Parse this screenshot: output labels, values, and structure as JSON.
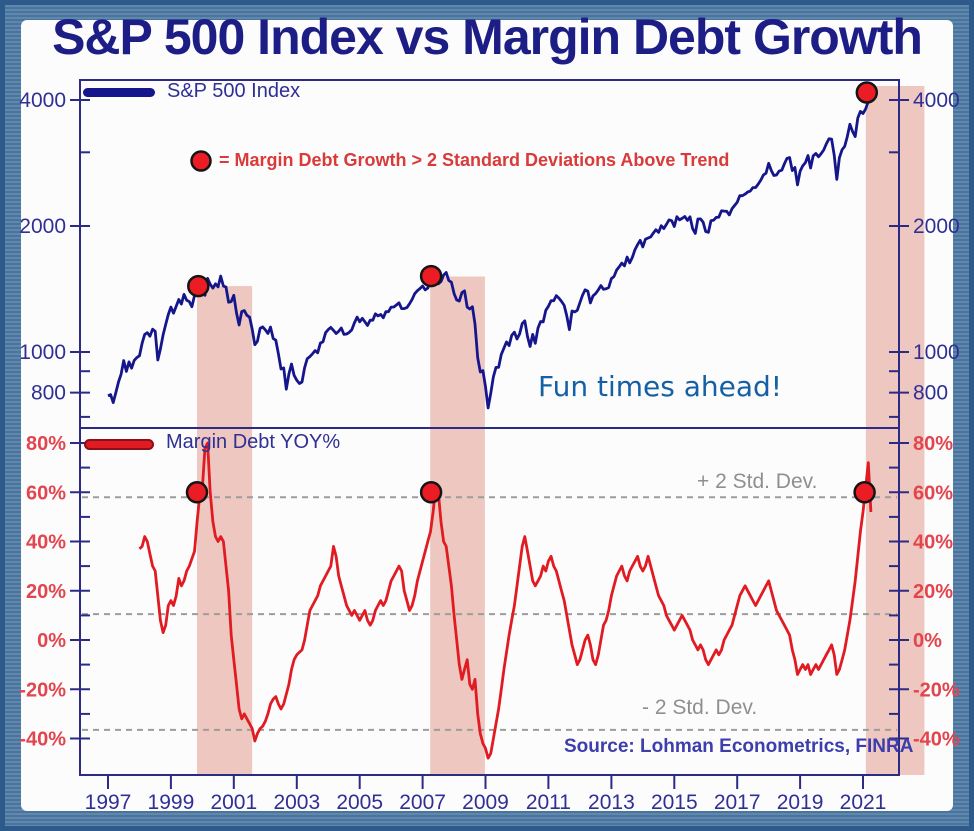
{
  "title": "S&P 500 Index vs Margin Debt Growth",
  "legend": {
    "sp500_label": "S&P 500 Index",
    "margin_dot_label": "= Margin Debt Growth > 2 Standard Deviations Above Trend",
    "margin_yoy_label": "Margin Debt YOY%"
  },
  "annotations": {
    "fun_times": "Fun times ahead!",
    "plus_2sd": "+ 2 Std. Dev.",
    "minus_2sd": "- 2 Std. Dev.",
    "source": "Source: Lohman Econometrics, FINRA"
  },
  "colors": {
    "title": "#1d1d86",
    "navy_text": "#2f2f94",
    "red_text": "#d93a3a",
    "red_tick": "#e2454d",
    "fun": "#1460a5",
    "gray": "#8f8f8f",
    "source": "#3d3dab",
    "axis": "#2b2b86",
    "sp500_line": "#16168c",
    "margin_line": "#e11b22",
    "band": "rgba(224,148,132,0.5)",
    "dot_fill": "#ec1c24",
    "dot_stroke": "#151515",
    "dashed": "#9c9c9c",
    "frame_outer": "#2d5a8a",
    "frame_band": "#4e7ba6"
  },
  "chart_data": {
    "type": "line",
    "title": "S&P 500 Index vs Margin Debt Growth",
    "x_axis": {
      "ticks": [
        1997,
        1999,
        2001,
        2003,
        2005,
        2007,
        2009,
        2011,
        2013,
        2015,
        2017,
        2019,
        2021
      ],
      "range": [
        1996.1,
        2022.1
      ]
    },
    "panels": [
      {
        "id": "sp500",
        "scale": "log",
        "y_range": [
          660,
          4460
        ],
        "y_ticks": {
          "major": [
            {
              "value": 4000,
              "label": "4000"
            },
            {
              "value": 2000,
              "label": "2000"
            },
            {
              "value": 1000,
              "label": "1000"
            },
            {
              "value": 800,
              "label": "800"
            }
          ],
          "minor": [
            3000,
            900,
            700
          ]
        },
        "series": {
          "name": "S&P 500 Index",
          "frequency": "monthly",
          "start_year": 1997,
          "values": [
            786,
            791,
            757,
            801,
            848,
            885,
            954,
            899,
            947,
            915,
            955,
            970,
            980,
            1049,
            1102,
            1112,
            1091,
            1134,
            1121,
            957,
            1017,
            1099,
            1164,
            1229,
            1280,
            1238,
            1286,
            1335,
            1302,
            1373,
            1329,
            1320,
            1283,
            1363,
            1389,
            1469,
            1394,
            1366,
            1499,
            1452,
            1421,
            1455,
            1431,
            1518,
            1437,
            1429,
            1315,
            1320,
            1366,
            1240,
            1160,
            1249,
            1256,
            1224,
            1211,
            1134,
            1041,
            1060,
            1139,
            1148,
            1130,
            1107,
            1147,
            1077,
            1067,
            990,
            911,
            916,
            815,
            886,
            936,
            880,
            856,
            841,
            848,
            917,
            964,
            975,
            990,
            1008,
            996,
            1051,
            1058,
            1112,
            1131,
            1145,
            1126,
            1107,
            1121,
            1141,
            1102,
            1104,
            1114,
            1130,
            1174,
            1212,
            1181,
            1204,
            1181,
            1157,
            1192,
            1191,
            1234,
            1220,
            1229,
            1207,
            1249,
            1248,
            1280,
            1281,
            1295,
            1311,
            1270,
            1270,
            1277,
            1304,
            1336,
            1378,
            1401,
            1418,
            1438,
            1407,
            1421,
            1482,
            1531,
            1503,
            1455,
            1474,
            1527,
            1549,
            1481,
            1468,
            1379,
            1331,
            1323,
            1386,
            1400,
            1280,
            1267,
            1283,
            1166,
            969,
            896,
            903,
            826,
            735,
            798,
            873,
            919,
            919,
            987,
            1021,
            1057,
            1036,
            1096,
            1115,
            1074,
            1104,
            1169,
            1187,
            1089,
            1031,
            1102,
            1049,
            1141,
            1183,
            1181,
            1258,
            1286,
            1327,
            1326,
            1364,
            1345,
            1321,
            1292,
            1219,
            1131,
            1253,
            1247,
            1258,
            1312,
            1366,
            1408,
            1398,
            1310,
            1362,
            1379,
            1407,
            1441,
            1412,
            1416,
            1426,
            1498,
            1515,
            1569,
            1598,
            1631,
            1606,
            1686,
            1633,
            1682,
            1757,
            1806,
            1848,
            1783,
            1859,
            1872,
            1884,
            1924,
            1960,
            1931,
            2003,
            1972,
            2018,
            2068,
            2059,
            1995,
            2105,
            2068,
            2086,
            2107,
            2063,
            2104,
            1972,
            1920,
            2079,
            2080,
            2044,
            1940,
            1932,
            2060,
            2065,
            2097,
            2099,
            2174,
            2171,
            2168,
            2126,
            2199,
            2239,
            2279,
            2364,
            2363,
            2384,
            2412,
            2423,
            2470,
            2472,
            2519,
            2575,
            2648,
            2674,
            2824,
            2714,
            2641,
            2648,
            2705,
            2718,
            2816,
            2902,
            2914,
            2712,
            2760,
            2507,
            2704,
            2784,
            2834,
            2946,
            2752,
            2942,
            2980,
            2926,
            2977,
            3038,
            3141,
            3231,
            3226,
            2954,
            2585,
            2912,
            3044,
            3100,
            3271,
            3500,
            3363,
            3270,
            3622,
            3756,
            3714,
            3811,
            3973,
            4181
          ]
        }
      },
      {
        "id": "margin_debt",
        "scale": "linear",
        "y_range": [
          -55,
          86
        ],
        "y_ticks": {
          "major": [
            {
              "value": 80,
              "label": "80%"
            },
            {
              "value": 60,
              "label": "60%"
            },
            {
              "value": 40,
              "label": "40%"
            },
            {
              "value": 20,
              "label": "20%"
            },
            {
              "value": 0,
              "label": "0%"
            },
            {
              "value": -20,
              "label": "-20%"
            },
            {
              "value": -40,
              "label": "-40%"
            }
          ],
          "minor": [
            70,
            50,
            30,
            10,
            -10,
            -30
          ]
        },
        "std_dev_lines": [
          {
            "label": "+ 2 Std. Dev.",
            "value": 58
          },
          {
            "label": "trend",
            "value": 10.5
          },
          {
            "label": "- 2 Std. Dev.",
            "value": -36.5
          }
        ],
        "series": {
          "name": "Margin Debt YOY%",
          "frequency": "monthly",
          "start_year": 1998,
          "values": [
            37,
            38,
            42,
            40,
            35,
            30,
            28,
            18,
            8,
            3,
            6,
            14,
            16,
            14,
            18,
            25,
            22,
            24,
            28,
            30,
            33,
            36,
            48,
            59,
            62,
            78,
            80,
            60,
            48,
            42,
            40,
            42,
            40,
            30,
            20,
            2,
            -8,
            -18,
            -28,
            -32,
            -30,
            -32,
            -34,
            -36,
            -41,
            -38,
            -36,
            -35,
            -33,
            -30,
            -26,
            -24,
            -23,
            -26,
            -28,
            -26,
            -22,
            -18,
            -12,
            -8,
            -6,
            -5,
            -4,
            0,
            6,
            12,
            14,
            16,
            18,
            22,
            24,
            26,
            28,
            30,
            38,
            34,
            26,
            22,
            18,
            14,
            12,
            10,
            12,
            10,
            8,
            10,
            12,
            8,
            6,
            8,
            12,
            14,
            16,
            14,
            16,
            20,
            24,
            26,
            28,
            30,
            28,
            20,
            16,
            12,
            14,
            18,
            24,
            28,
            32,
            36,
            40,
            44,
            52,
            62,
            60,
            48,
            40,
            38,
            30,
            22,
            10,
            0,
            -10,
            -16,
            -12,
            -8,
            -18,
            -20,
            -16,
            -30,
            -38,
            -42,
            -44,
            -48,
            -46,
            -40,
            -34,
            -28,
            -20,
            -12,
            -5,
            2,
            8,
            14,
            22,
            30,
            38,
            42,
            36,
            30,
            24,
            22,
            24,
            26,
            30,
            28,
            32,
            34,
            30,
            28,
            24,
            20,
            16,
            10,
            4,
            -2,
            -6,
            -10,
            -8,
            -4,
            0,
            2,
            -2,
            -8,
            -10,
            -6,
            0,
            6,
            8,
            12,
            18,
            22,
            26,
            28,
            30,
            26,
            24,
            28,
            30,
            32,
            34,
            30,
            28,
            30,
            34,
            30,
            26,
            22,
            18,
            16,
            14,
            10,
            8,
            6,
            4,
            6,
            8,
            10,
            8,
            6,
            4,
            0,
            -2,
            -4,
            -2,
            -4,
            -8,
            -10,
            -8,
            -6,
            -4,
            -6,
            -4,
            0,
            2,
            4,
            6,
            10,
            14,
            18,
            20,
            22,
            20,
            18,
            16,
            14,
            16,
            18,
            20,
            22,
            24,
            20,
            16,
            12,
            10,
            8,
            6,
            4,
            2,
            -4,
            -8,
            -14,
            -12,
            -10,
            -12,
            -10,
            -14,
            -12,
            -10,
            -12,
            -10,
            -8,
            -6,
            -4,
            -2,
            -6,
            -14,
            -12,
            -8,
            -4,
            2,
            8,
            16,
            24,
            34,
            44,
            52,
            62,
            72,
            52
          ]
        }
      }
    ],
    "highlight_dots": {
      "sp500": [
        {
          "year": 1999.87,
          "value": 1437
        },
        {
          "year": 2007.27,
          "value": 1518
        },
        {
          "year": 2021.12,
          "value": 4168
        }
      ],
      "margin_debt": [
        {
          "year": 1999.83,
          "value": 60
        },
        {
          "year": 2007.27,
          "value": 60
        },
        {
          "year": 2021.05,
          "value": 60
        }
      ]
    },
    "highlight_bands": [
      {
        "start_year": 1999.83,
        "end_year": 2001.58,
        "top_value": 1437
      },
      {
        "start_year": 2007.24,
        "end_year": 2008.98,
        "top_value": 1515
      },
      {
        "start_year": 2021.09,
        "end_year": 2022.95,
        "top_value": 4320
      }
    ],
    "legend_position": "top-left",
    "grid": false
  }
}
